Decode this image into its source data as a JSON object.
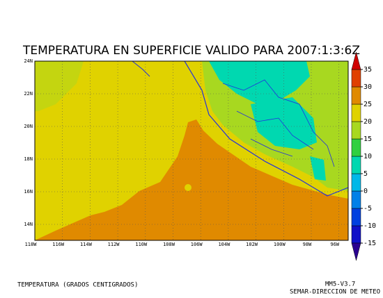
{
  "title": "TEMPERATURA EN SUPERFICIE VALIDO PARA 2007:1:3:6Z",
  "map": {
    "lat_labels": [
      "24N",
      "22N",
      "20N",
      "18N",
      "16N",
      "14N"
    ],
    "lon_labels": [
      "118W",
      "116W",
      "114W",
      "112W",
      "110W",
      "108W",
      "106W",
      "104W",
      "102W",
      "100W",
      "98W",
      "96W"
    ]
  },
  "colorbar": {
    "levels": [
      -15,
      -10,
      -5,
      0,
      5,
      10,
      15,
      20,
      25,
      30,
      35
    ],
    "colors": [
      "#2a0090",
      "#1010c8",
      "#0040e0",
      "#0080e8",
      "#00b8e8",
      "#00d8b0",
      "#30d040",
      "#a8d820",
      "#e0d200",
      "#e08a00",
      "#e04000",
      "#d00000"
    ]
  },
  "footer": {
    "left": "TEMPERATURA (GRADOS CENTIGRADOS)",
    "right_1": "MM5-V3.7",
    "right_2": "SEMAR-DIRECCION DE METEO"
  }
}
